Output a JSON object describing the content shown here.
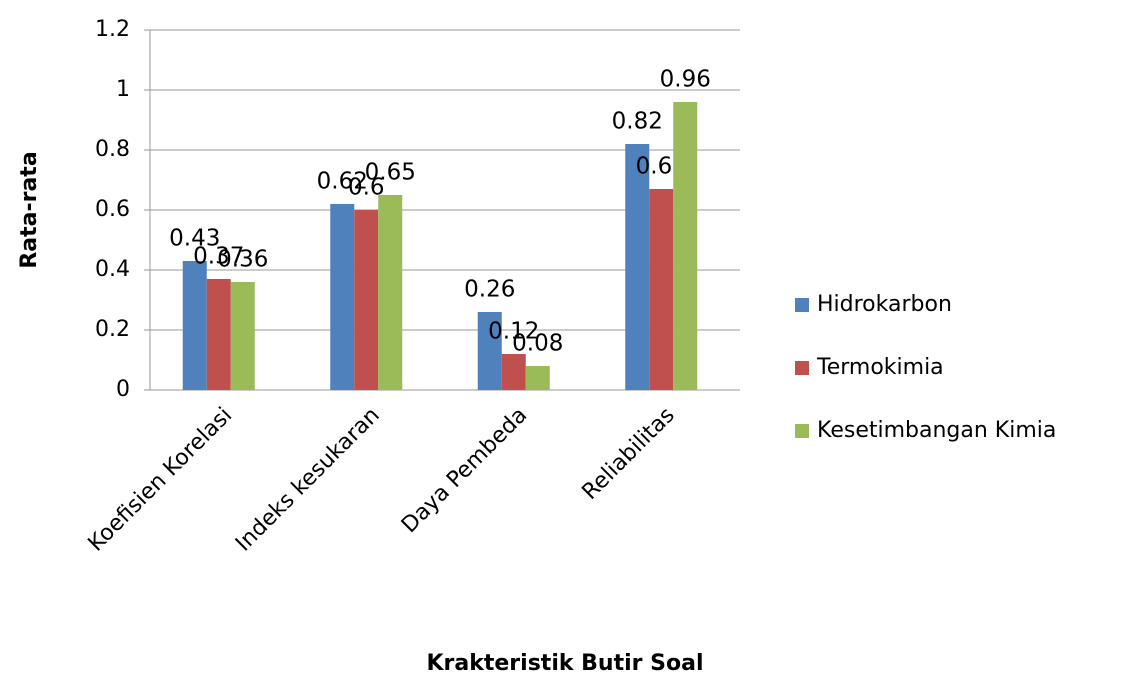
{
  "chart_data": {
    "type": "bar",
    "x_label": "Krakteristik Butir Soal",
    "y_label": "Rata-rata",
    "categories": [
      "Koefisien Korelasi",
      "Indeks kesukaran",
      "Daya Pembeda",
      "Reliabilitas"
    ],
    "series": [
      {
        "name": "Hidrokarbon",
        "color": "#4f81bd",
        "values": [
          0.43,
          0.62,
          0.26,
          0.82
        ]
      },
      {
        "name": "Termokimia",
        "color": "#c0504d",
        "values": [
          0.37,
          0.6,
          0.12,
          0.67
        ]
      },
      {
        "name": "Kesetimbangan Kimia",
        "color": "#9bbb59",
        "values": [
          0.36,
          0.65,
          0.08,
          0.96
        ]
      }
    ],
    "ylim": [
      0,
      1.2
    ],
    "yticks": [
      0,
      0.2,
      0.4,
      0.6,
      0.8,
      1,
      1.2
    ],
    "grid": true,
    "legend": "right"
  }
}
